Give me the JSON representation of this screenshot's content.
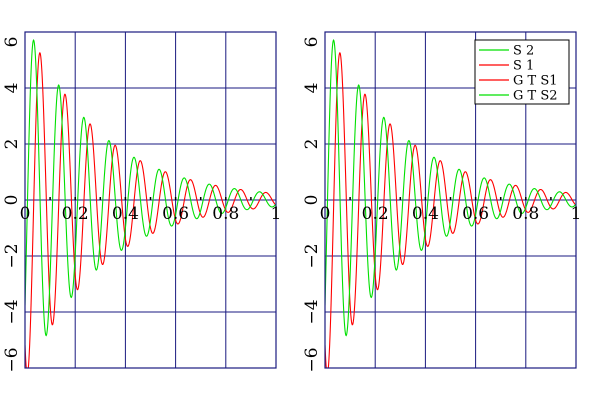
{
  "colors": {
    "grid": "#1a1a80",
    "frame": "#1a1a80",
    "S1": "#ff0000",
    "S2": "#00e000"
  },
  "chart_data": [
    {
      "type": "line",
      "grid": true,
      "xlim": [
        0,
        1
      ],
      "ylim": [
        -6,
        6
      ],
      "x_ticks": [
        "0",
        "0.2",
        "0.4",
        "0.6",
        "0.8",
        "1"
      ],
      "y_ticks": [
        "6",
        "4",
        "2",
        "0",
        "−2",
        "−4",
        "−6"
      ],
      "series": [
        {
          "name": "S 1",
          "color": "#ff0000",
          "model": {
            "A": 6.4,
            "decay": 3.3,
            "freq_hz": 10,
            "phase_cycles": 0.35
          }
        },
        {
          "name": "S 2",
          "color": "#00e000",
          "model": {
            "A": 6.4,
            "decay": 3.3,
            "freq_hz": 10,
            "phase_cycles": 0.1
          }
        }
      ],
      "legend": null
    },
    {
      "type": "line",
      "grid": true,
      "xlim": [
        0,
        1
      ],
      "ylim": [
        -6,
        6
      ],
      "x_ticks": [
        "0",
        "0.2",
        "0.4",
        "0.6",
        "0.8",
        "1"
      ],
      "y_ticks": [
        "6",
        "4",
        "2",
        "0",
        "−2",
        "−4",
        "−6"
      ],
      "series": [
        {
          "name": "G T S1",
          "color": "#ff0000",
          "model": {
            "A": 6.4,
            "decay": 3.3,
            "freq_hz": 10,
            "phase_cycles": 0.35
          }
        },
        {
          "name": "G T S2",
          "color": "#00e000",
          "model": {
            "A": 6.4,
            "decay": 3.3,
            "freq_hz": 10,
            "phase_cycles": 0.1
          }
        }
      ],
      "legend": {
        "placement": "top-right",
        "entries": [
          {
            "label": "S 2",
            "color": "#00e000"
          },
          {
            "label": "S 1",
            "color": "#ff0000"
          },
          {
            "label": "G T S1",
            "color": "#ff0000"
          },
          {
            "label": "G T S2",
            "color": "#00e000"
          }
        ]
      }
    }
  ]
}
